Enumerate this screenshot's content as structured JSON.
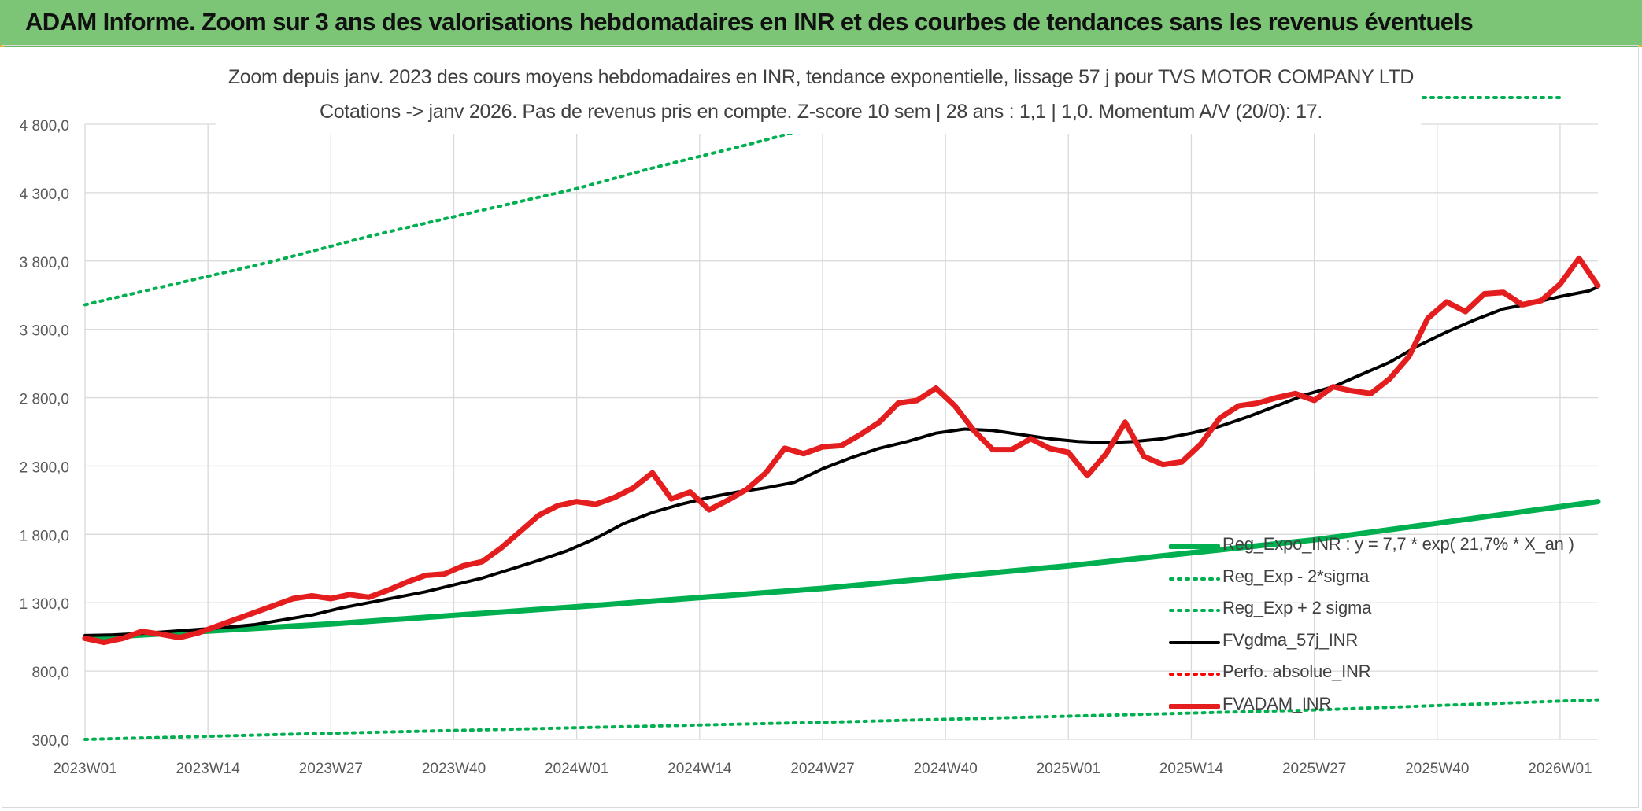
{
  "banner": {
    "title": "ADAM Informe. Zoom sur 3 ans des valorisations hebdomadaires en INR et des courbes de tendances sans les revenus éventuels"
  },
  "colors": {
    "banner_bg": "#7cc576",
    "reg_expo": "#00b050",
    "sigma_bands": "#00b050",
    "fvgdma": "#000000",
    "perfo": "#ff0000",
    "fvadam": "#e41e1e"
  },
  "chart_data": {
    "type": "line",
    "title": "Zoom depuis janv. 2023 des cours moyens hebdomadaires en INR, tendance exponentielle, lissage 57 j pour TVS MOTOR COMPANY LTD",
    "subtitle": "Cotations -> janv 2026. Pas de revenus pris en compte. Z-score 10 sem | 28 ans : 1,1 | 1,0. Momentum A/V (20/0): 17.",
    "xlabel": "",
    "ylabel": "",
    "ylim": [
      300,
      4800
    ],
    "y_ticks": [
      "4 800,0",
      "4 300,0",
      "3 800,0",
      "3 300,0",
      "2 800,0",
      "2 300,0",
      "1 800,0",
      "1 300,0",
      "800,0",
      "300,0"
    ],
    "y_tick_values": [
      4800,
      4300,
      3800,
      3300,
      2800,
      2300,
      1800,
      1300,
      800,
      300
    ],
    "x_ticks": [
      "2023W01",
      "2023W14",
      "2023W27",
      "2023W40",
      "2024W01",
      "2024W14",
      "2024W27",
      "2024W40",
      "2025W01",
      "2025W14",
      "2025W27",
      "2025W40",
      "2026W01"
    ],
    "x_tick_weeks": [
      0,
      13,
      26,
      39,
      52,
      65,
      78,
      91,
      104,
      117,
      130,
      143,
      156
    ],
    "week_count": 161,
    "grid": true,
    "legend_position": "bottom-right",
    "series": [
      {
        "name": "Reg_Expo_INR : y = 7,7 * exp( 21,7% *  X_an )",
        "style": "solid-thick",
        "color": "#00b050",
        "x_weeks": [
          0,
          26,
          52,
          78,
          104,
          130,
          160
        ],
        "values": [
          1040,
          1145,
          1270,
          1405,
          1570,
          1760,
          2040
        ]
      },
      {
        "name": "Reg_Exp - 2*sigma",
        "style": "dotted",
        "color": "#00b050",
        "x_weeks": [
          0,
          26,
          52,
          78,
          104,
          130,
          160
        ],
        "values": [
          300,
          345,
          385,
          425,
          470,
          515,
          590
        ]
      },
      {
        "name": "Reg_Exp + 2 sigma",
        "style": "dotted",
        "color": "#00b050",
        "x_weeks": [
          0,
          10,
          20,
          30,
          40,
          52,
          60,
          70,
          76
        ],
        "values": [
          3480,
          3640,
          3800,
          3980,
          4140,
          4330,
          4480,
          4650,
          4760
        ]
      },
      {
        "name": "FVgdma_57j_INR",
        "style": "solid",
        "color": "#000000",
        "x_weeks": [
          0,
          3,
          6,
          9,
          12,
          15,
          18,
          21,
          24,
          27,
          30,
          33,
          36,
          39,
          42,
          45,
          48,
          51,
          54,
          57,
          60,
          63,
          66,
          69,
          72,
          75,
          78,
          81,
          84,
          87,
          90,
          93,
          96,
          99,
          102,
          105,
          108,
          111,
          114,
          117,
          120,
          123,
          126,
          129,
          132,
          135,
          138,
          141,
          144,
          147,
          150,
          153,
          156,
          159,
          160
        ],
        "values": [
          1060,
          1065,
          1075,
          1090,
          1105,
          1120,
          1140,
          1175,
          1210,
          1260,
          1300,
          1340,
          1380,
          1430,
          1480,
          1545,
          1610,
          1680,
          1770,
          1880,
          1960,
          2020,
          2070,
          2110,
          2140,
          2180,
          2280,
          2360,
          2430,
          2480,
          2540,
          2570,
          2560,
          2530,
          2500,
          2480,
          2470,
          2480,
          2500,
          2540,
          2590,
          2660,
          2740,
          2820,
          2880,
          2970,
          3060,
          3180,
          3280,
          3370,
          3450,
          3490,
          3540,
          3580,
          3610
        ]
      },
      {
        "name": "Perfo. absolue_INR",
        "style": "dotted",
        "color": "#ff0000",
        "x_weeks": [],
        "values": []
      },
      {
        "name": "FVADAM_INR",
        "style": "solid-thick",
        "color": "#e41e1e",
        "x_weeks": [
          0,
          2,
          4,
          6,
          8,
          10,
          12,
          14,
          16,
          18,
          20,
          22,
          24,
          26,
          28,
          30,
          32,
          34,
          36,
          38,
          40,
          42,
          44,
          46,
          48,
          50,
          52,
          54,
          56,
          58,
          60,
          62,
          64,
          66,
          68,
          70,
          72,
          74,
          76,
          78,
          80,
          82,
          84,
          86,
          88,
          90,
          92,
          94,
          96,
          98,
          100,
          102,
          104,
          106,
          108,
          110,
          112,
          114,
          116,
          118,
          120,
          122,
          124,
          126,
          128,
          130,
          132,
          134,
          136,
          138,
          140,
          142,
          144,
          146,
          148,
          150,
          152,
          154,
          156,
          158,
          160
        ],
        "values": [
          1040,
          1010,
          1040,
          1090,
          1070,
          1045,
          1080,
          1130,
          1180,
          1230,
          1280,
          1330,
          1350,
          1330,
          1360,
          1340,
          1390,
          1450,
          1500,
          1510,
          1570,
          1600,
          1700,
          1820,
          1940,
          2010,
          2040,
          2020,
          2070,
          2140,
          2250,
          2060,
          2110,
          1980,
          2050,
          2130,
          2250,
          2430,
          2390,
          2440,
          2450,
          2530,
          2620,
          2760,
          2780,
          2870,
          2740,
          2560,
          2420,
          2420,
          2500,
          2430,
          2400,
          2230,
          2390,
          2620,
          2370,
          2310,
          2330,
          2460,
          2650,
          2740,
          2760,
          2800,
          2830,
          2780,
          2880,
          2850,
          2830,
          2940,
          3100,
          3380,
          3500,
          3430,
          3560,
          3570,
          3480,
          3510,
          3630,
          3820,
          3620
        ]
      }
    ]
  }
}
